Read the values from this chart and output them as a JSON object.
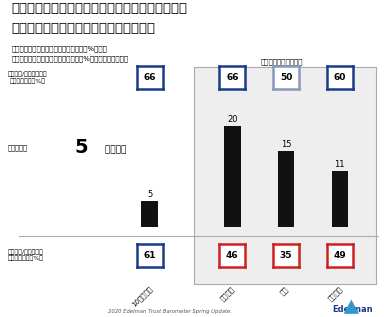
{
  "title_line1": "自国の政府に対する信頼度が低い国においては、",
  "title_line2": "地方の政府がそのギャップを埋めている",
  "subtitle_line1": "地方政府／地方自治体に対する信頼度（%）と、",
  "subtitle_line2": "中央政府／中央省庁に対する信頼度（%）の差（ポイント）",
  "top_note": "差の大きい上位３か国",
  "categories": [
    "10カ国平均",
    "アメリカ",
    "日本",
    "フランス"
  ],
  "bar_values": [
    5,
    20,
    15,
    11
  ],
  "local_trust": [
    66,
    66,
    50,
    60
  ],
  "central_trust": [
    61,
    46,
    35,
    49
  ],
  "local_box_colors": [
    "#1a3a8a",
    "#1a3a8a",
    "#8899bb",
    "#1a3a8a"
  ],
  "central_box_colors": [
    "#1a3a8a",
    "#cc2222",
    "#cc2222",
    "#cc2222"
  ],
  "diff_label_num": "5",
  "diff_label_rest": " ポイント",
  "label_local": "地方政府/地方自治体に\n対する信頼度（%）",
  "label_diff": "信頼度の差",
  "label_central": "中央政府/中央省庁に\n対する信頼度（%）",
  "source": "2020 Edelman Trust Barometer Spring Update.",
  "bg_color": "#ffffff",
  "bar_color": "#111111",
  "edelman_color": "#1a3a8a"
}
